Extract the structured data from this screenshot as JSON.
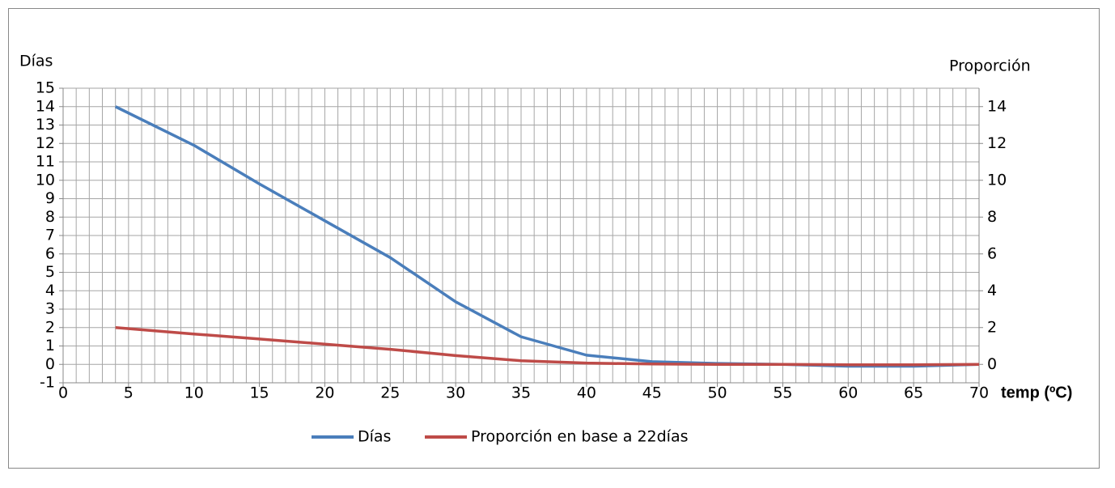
{
  "chart_data": {
    "type": "line",
    "y_label": "Días",
    "y2_label": "Proporción",
    "x_label": "temp (ºC)",
    "x": [
      4,
      10,
      15,
      20,
      25,
      30,
      35,
      40,
      45,
      50,
      55,
      60,
      65,
      70
    ],
    "series": [
      {
        "name": "Días",
        "color": "#4a7ebb",
        "values": [
          14,
          11.9,
          9.8,
          7.8,
          5.8,
          3.4,
          1.5,
          0.5,
          0.15,
          0.05,
          0,
          -0.1,
          -0.1,
          0
        ]
      },
      {
        "name": "Proporción en base a 22días",
        "color": "#be4b48",
        "axis": "y2",
        "values": [
          2,
          1.65,
          1.38,
          1.1,
          0.82,
          0.48,
          0.2,
          0.07,
          0.02,
          0,
          0,
          -0.02,
          -0.02,
          0
        ]
      }
    ],
    "xlim": [
      0,
      70
    ],
    "xticks": [
      0,
      5,
      10,
      15,
      20,
      25,
      30,
      35,
      40,
      45,
      50,
      55,
      60,
      65,
      70
    ],
    "minor_xticks": [
      0,
      1,
      2,
      3,
      4,
      5,
      6,
      7,
      8,
      9,
      10,
      11,
      12,
      13,
      14,
      15,
      16,
      17,
      18,
      19,
      20,
      21,
      22,
      23,
      24,
      25,
      26,
      27,
      28,
      29,
      30,
      31,
      32,
      33,
      34,
      35,
      36,
      37,
      38,
      39,
      40,
      41,
      42,
      43,
      44,
      45,
      46,
      47,
      48,
      49,
      50,
      51,
      52,
      53,
      54,
      55,
      56,
      57,
      58,
      59,
      60,
      61,
      62,
      63,
      64,
      65,
      66,
      67,
      68,
      69,
      70
    ],
    "ylim": [
      -1,
      15
    ],
    "yticks": [
      -1,
      0,
      1,
      2,
      3,
      4,
      5,
      6,
      7,
      8,
      9,
      10,
      11,
      12,
      13,
      14,
      15
    ],
    "y2lim": [
      -1,
      15
    ],
    "y2ticks": [
      0,
      2,
      4,
      6,
      8,
      10,
      12,
      14
    ],
    "grid": true,
    "legend": "bottom"
  }
}
